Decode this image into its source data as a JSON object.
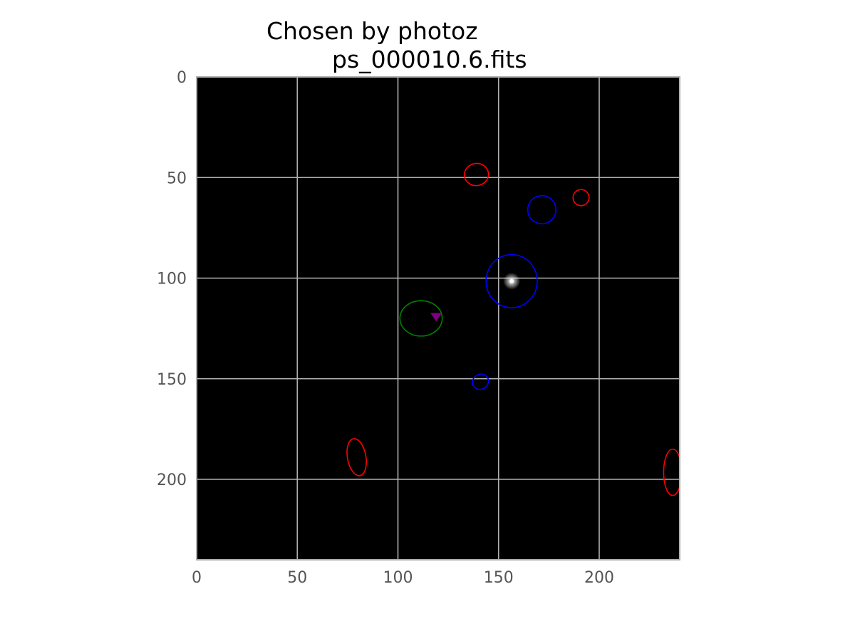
{
  "chart_data": {
    "type": "image",
    "title_line1": "Chosen by photoz",
    "title_line2": "ps_000010.6.fits",
    "xlabel": "",
    "ylabel": "",
    "xlim": [
      0,
      240
    ],
    "ylim": [
      240,
      0
    ],
    "y_inverted": true,
    "x_ticks": [
      "0",
      "50",
      "100",
      "150",
      "200"
    ],
    "y_ticks": [
      "0",
      "50",
      "100",
      "150",
      "200"
    ],
    "x_tick_values": [
      0,
      50,
      100,
      150,
      200
    ],
    "y_tick_values": [
      0,
      50,
      100,
      150,
      200
    ],
    "grid": true,
    "background_color": "#000000",
    "grid_color": "#b0b0b0",
    "source": {
      "x": 156.5,
      "y": 101.5,
      "color": "#ffffff"
    },
    "ellipses": [
      {
        "color": "#ff0000",
        "cx": 139,
        "cy": 48.5,
        "rx": 6,
        "ry": 5.5,
        "angle": -10
      },
      {
        "color": "#ff0000",
        "cx": 191,
        "cy": 60,
        "rx": 4,
        "ry": 4,
        "angle": 0
      },
      {
        "color": "#0000ff",
        "cx": 171.5,
        "cy": 66,
        "rx": 7,
        "ry": 7,
        "angle": 0
      },
      {
        "color": "#0000ff",
        "cx": 156.5,
        "cy": 101.5,
        "rx": 12.7,
        "ry": 13.2,
        "angle": 0
      },
      {
        "color": "#008000",
        "cx": 111.5,
        "cy": 120,
        "rx": 10.5,
        "ry": 8.8,
        "angle": 0
      },
      {
        "color": "#0000ff",
        "cx": 141,
        "cy": 151.5,
        "rx": 4.1,
        "ry": 3.7,
        "angle": -30
      },
      {
        "color": "#ff0000",
        "cx": 79.5,
        "cy": 189,
        "rx": 4.6,
        "ry": 9.3,
        "angle": -10
      },
      {
        "color": "#ff0000",
        "cx": 236.5,
        "cy": 196.5,
        "rx": 4.5,
        "ry": 11.5,
        "angle": 0
      }
    ],
    "markers": [
      {
        "shape": "triangle-down",
        "color": "#800080",
        "x": 119,
        "y": 119
      }
    ]
  }
}
